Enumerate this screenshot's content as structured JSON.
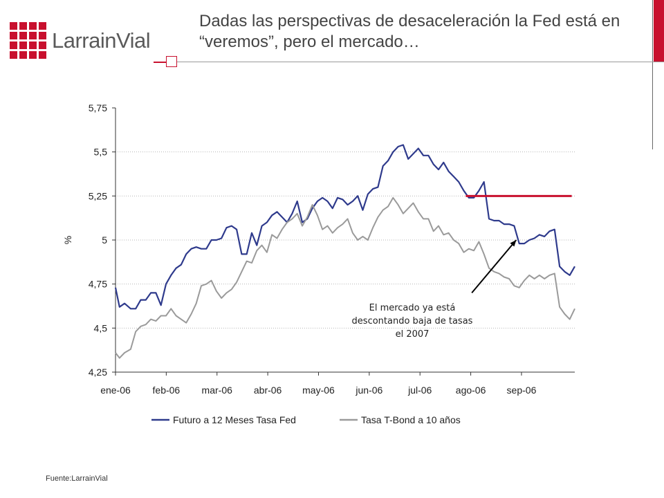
{
  "header": {
    "logo_text": "LarrainVial",
    "title": "Dadas las perspectivas de desaceleración la Fed está en “veremos”, pero el mercado…"
  },
  "footer": {
    "source": "Fuente:LarrainVial"
  },
  "colors": {
    "brand": "#c8102e",
    "fed": "#2e3a8c",
    "bond": "#9a9a9a",
    "threshold": "#c8102e"
  },
  "chart_data": {
    "type": "line",
    "title": "",
    "xlabel": "",
    "ylabel": "%",
    "ylim": [
      4.25,
      5.75
    ],
    "yticks": [
      "5,75",
      "5,5",
      "5,25",
      "5",
      "4,75",
      "4,5",
      "4,25"
    ],
    "ytick_values": [
      5.75,
      5.5,
      5.25,
      5.0,
      4.75,
      4.5,
      4.25
    ],
    "categories": [
      "ene-06",
      "feb-06",
      "mar-06",
      "abr-06",
      "may-06",
      "jun-06",
      "jul-06",
      "ago-06",
      "sep-06"
    ],
    "grid": true,
    "legend_position": "bottom",
    "series": [
      {
        "name": "Futuro a 12 Meses Tasa Fed",
        "x": [
          0,
          0.4,
          0.9,
          1.5,
          2,
          2.5,
          3,
          3.5,
          4,
          4.5,
          5,
          5.5,
          6,
          6.5,
          7,
          7.5,
          8,
          8.5,
          9,
          9.5,
          10,
          10.5,
          11,
          11.5,
          12,
          12.5,
          13,
          13.5,
          14,
          14.5,
          15,
          15.5,
          16,
          16.5,
          17,
          17.5,
          18,
          18.5,
          19,
          19.5,
          20,
          20.5,
          21,
          21.5,
          22,
          22.5,
          23,
          23.5,
          24,
          24.5,
          25,
          25.5,
          26,
          26.5,
          27,
          27.5,
          28,
          28.5,
          29,
          29.5,
          30,
          30.5,
          31,
          31.5,
          32,
          32.5,
          33,
          33.5,
          34,
          34.5,
          35,
          35.5,
          36,
          36.5,
          37,
          37.5,
          38,
          38.5,
          39
        ],
        "values": [
          4.73,
          4.62,
          4.64,
          4.61,
          4.61,
          4.66,
          4.66,
          4.7,
          4.7,
          4.63,
          4.75,
          4.8,
          4.84,
          4.86,
          4.92,
          4.95,
          4.96,
          4.95,
          4.95,
          5.0,
          5.0,
          5.01,
          5.07,
          5.08,
          5.06,
          4.92,
          4.92,
          5.04,
          4.97,
          5.08,
          5.1,
          5.14,
          5.16,
          5.13,
          5.1,
          5.15,
          5.22,
          5.1,
          5.12,
          5.18,
          5.22,
          5.24,
          5.22,
          5.18,
          5.24,
          5.23,
          5.2,
          5.22,
          5.25,
          5.17,
          5.26,
          5.29,
          5.3,
          5.42,
          5.45,
          5.5,
          5.53,
          5.54,
          5.46,
          5.49,
          5.52,
          5.48,
          5.48,
          5.43,
          5.4,
          5.44,
          5.39,
          5.36,
          5.33,
          5.28,
          5.24,
          5.24,
          5.28,
          5.33,
          5.12,
          5.11,
          5.11,
          5.09,
          5.09
        ],
        "values_tail": [
          5.08,
          4.98,
          4.98,
          5.0,
          5.01,
          5.03,
          5.02,
          5.05,
          5.06,
          4.85,
          4.82,
          4.8,
          4.85
        ],
        "x_tail": [
          39.5,
          40,
          40.5,
          41,
          41.5,
          42,
          42.5,
          43,
          43.5,
          44,
          44.5,
          45,
          45.5
        ]
      },
      {
        "name": "Tasa T-Bond a 10 años",
        "x": [
          0,
          0.4,
          0.9,
          1.5,
          2,
          2.5,
          3,
          3.5,
          4,
          4.5,
          5,
          5.5,
          6,
          6.5,
          7,
          7.5,
          8,
          8.5,
          9,
          9.5,
          10,
          10.5,
          11,
          11.5,
          12,
          12.5,
          13,
          13.5,
          14,
          14.5,
          15,
          15.5,
          16,
          16.5,
          17,
          17.5,
          18,
          18.5,
          19,
          19.5,
          20,
          20.5,
          21,
          21.5,
          22,
          22.5,
          23,
          23.5,
          24,
          24.5,
          25,
          25.5,
          26,
          26.5,
          27,
          27.5,
          28,
          28.5,
          29,
          29.5,
          30,
          30.5,
          31,
          31.5,
          32,
          32.5,
          33,
          33.5,
          34,
          34.5,
          35,
          35.5,
          36,
          36.5,
          37,
          37.5,
          38,
          38.5,
          39
        ],
        "values": [
          4.36,
          4.33,
          4.36,
          4.38,
          4.48,
          4.51,
          4.52,
          4.55,
          4.54,
          4.57,
          4.57,
          4.61,
          4.57,
          4.55,
          4.53,
          4.58,
          4.64,
          4.74,
          4.75,
          4.77,
          4.71,
          4.67,
          4.7,
          4.72,
          4.76,
          4.82,
          4.88,
          4.87,
          4.94,
          4.97,
          4.93,
          5.03,
          5.01,
          5.06,
          5.1,
          5.12,
          5.15,
          5.08,
          5.13,
          5.2,
          5.14,
          5.06,
          5.08,
          5.04,
          5.07,
          5.09,
          5.12,
          5.04,
          5.0,
          5.02,
          5.0,
          5.07,
          5.13,
          5.17,
          5.19,
          5.24,
          5.2,
          5.15,
          5.18,
          5.21,
          5.16,
          5.12,
          5.12,
          5.05,
          5.08,
          5.03,
          5.04,
          5.0,
          4.98,
          4.93,
          4.95,
          4.94,
          4.99,
          4.92,
          4.84,
          4.82,
          4.81,
          4.79,
          4.78
        ],
        "values_tail": [
          4.74,
          4.73,
          4.77,
          4.8,
          4.78,
          4.8,
          4.78,
          4.8,
          4.81,
          4.62,
          4.58,
          4.55,
          4.61
        ],
        "x_tail": [
          39.5,
          40,
          40.5,
          41,
          41.5,
          42,
          42.5,
          43,
          43.5,
          44,
          44.5,
          45,
          45.5
        ]
      }
    ],
    "reference_line": {
      "value": 5.25,
      "x_from": 34.7,
      "x_to": 45.2
    },
    "annotation": {
      "lines": [
        "El mercado ya está",
        "descontando baja de tasas",
        "el 2007"
      ],
      "arrow_from": {
        "x": 35.3,
        "y": 4.7
      },
      "arrow_to": {
        "x": 39.7,
        "y": 5.0
      }
    },
    "x_max": 45.5
  }
}
